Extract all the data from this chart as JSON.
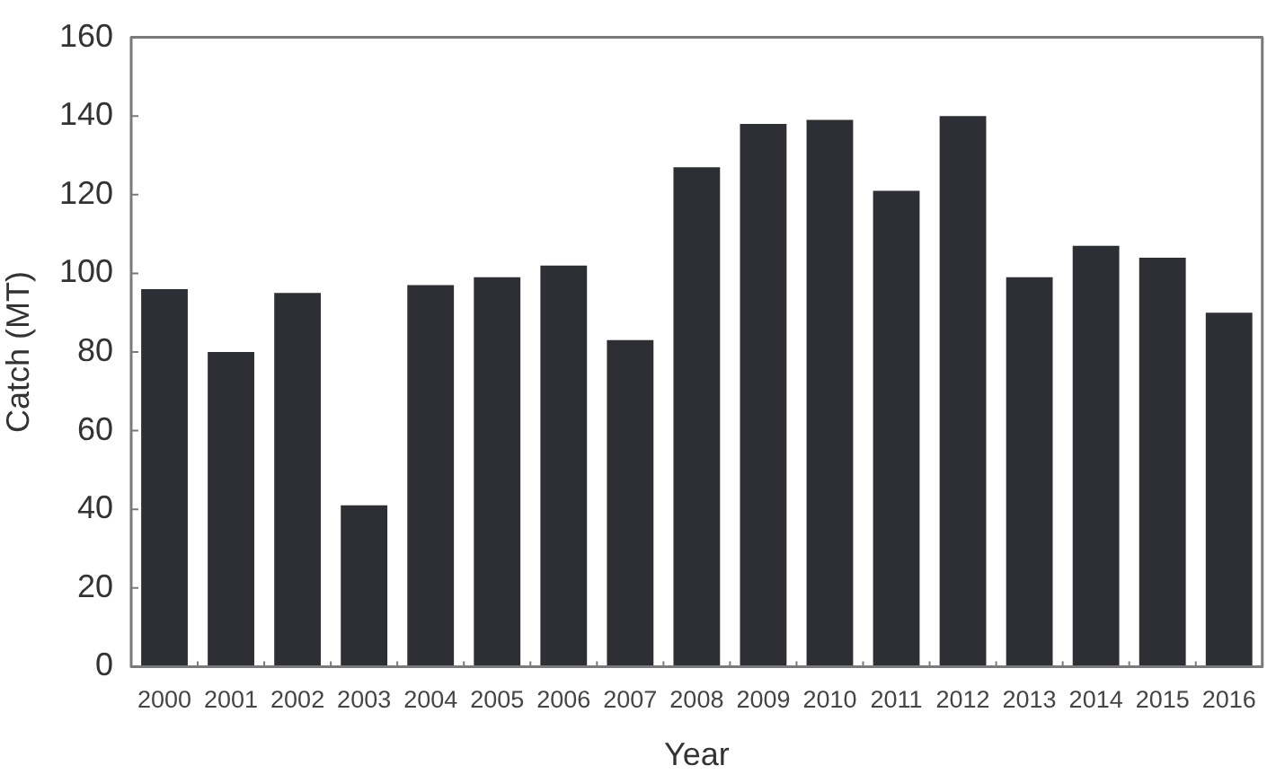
{
  "chart_data": {
    "type": "bar",
    "xlabel": "Year",
    "ylabel": "Catch (MT)",
    "categories": [
      "2000",
      "2001",
      "2002",
      "2003",
      "2004",
      "2005",
      "2006",
      "2007",
      "2008",
      "2009",
      "2010",
      "2011",
      "2012",
      "2013",
      "2014",
      "2015",
      "2016"
    ],
    "values": [
      96,
      80,
      95,
      41,
      97,
      99,
      102,
      83,
      127,
      138,
      139,
      121,
      140,
      99,
      107,
      104,
      90
    ],
    "color": "#2e2f35",
    "ylim": [
      0,
      160
    ],
    "yticks": [
      0,
      20,
      40,
      60,
      80,
      100,
      120,
      140,
      160
    ],
    "grid": false,
    "legend": false
  }
}
